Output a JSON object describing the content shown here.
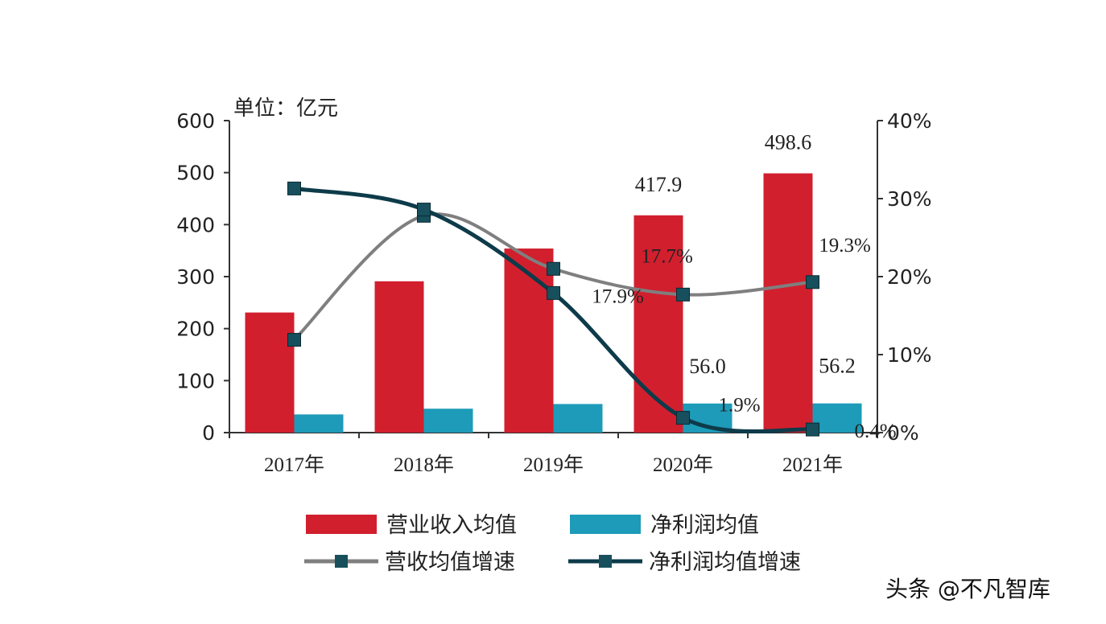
{
  "unit_label": "单位：亿元",
  "watermark": "头条 @不凡智库",
  "colors": {
    "revenue_bar": "#d11f2e",
    "profit_bar": "#1d9bb8",
    "revenue_growth_line": "#7f7f7f",
    "profit_growth_line": "#0d3b4a",
    "marker": "#17505c",
    "axis": "#333333",
    "text": "#222222"
  },
  "chart_data": {
    "type": "bar",
    "title": "",
    "xlabel": "",
    "ylabel": "单位：亿元",
    "categories": [
      "2017年",
      "2018年",
      "2019年",
      "2020年",
      "2021年"
    ],
    "ylim": [
      0,
      600
    ],
    "y_ticks": [
      0,
      100,
      200,
      300,
      400,
      500,
      600
    ],
    "y2lim": [
      0,
      40
    ],
    "y2_ticks": [
      0,
      10,
      20,
      30,
      40
    ],
    "y2_tick_labels": [
      "0%",
      "10%",
      "20%",
      "30%",
      "40%"
    ],
    "grid": false,
    "legend_position": "bottom",
    "series": [
      {
        "name": "营业收入均值",
        "type": "bar",
        "axis": "left",
        "values": [
          231,
          291,
          354,
          417.9,
          498.6
        ],
        "labels": [
          "",
          "",
          "",
          "417.9",
          "498.6"
        ]
      },
      {
        "name": "净利润均值",
        "type": "bar",
        "axis": "left",
        "values": [
          35,
          46,
          55,
          56.0,
          56.2
        ],
        "labels": [
          "",
          "",
          "",
          "56.0",
          "56.2"
        ]
      },
      {
        "name": "营收均值增速",
        "type": "line",
        "axis": "right",
        "values": [
          11.9,
          27.8,
          21.0,
          17.7,
          19.3
        ],
        "labels": [
          "",
          "",
          "",
          "17.7%",
          "19.3%"
        ]
      },
      {
        "name": "净利润均值增速",
        "type": "line",
        "axis": "right",
        "values": [
          31.3,
          28.6,
          17.9,
          1.9,
          0.4
        ],
        "labels": [
          "",
          "",
          "17.9%",
          "1.9%",
          "0.4%"
        ]
      }
    ]
  }
}
